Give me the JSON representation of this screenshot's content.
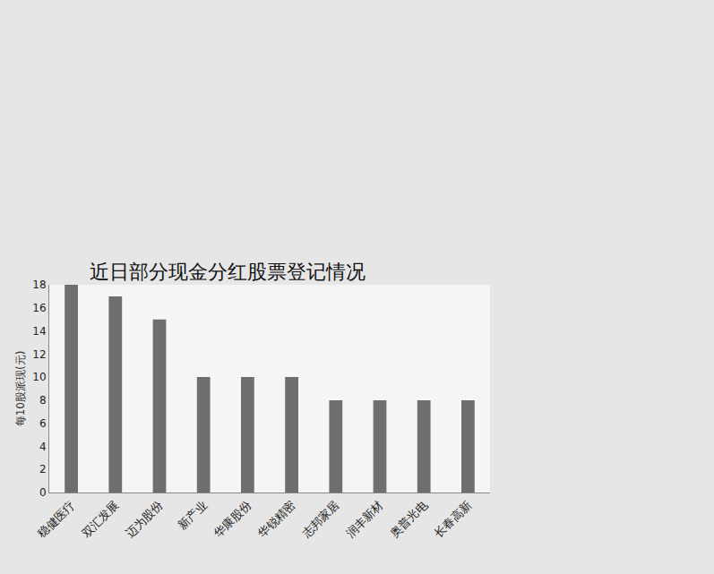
{
  "chart_data": {
    "type": "bar",
    "title": "近日部分现金分红股票登记情况",
    "y_label": "每10股派现(元)",
    "categories": [
      "稳健医疗",
      "双汇发展",
      "迈为股份",
      "新产业",
      "华康股份",
      "华锐精密",
      "志邦家居",
      "润丰新材",
      "奥普光电",
      "长春高新"
    ],
    "values": [
      18,
      17,
      15,
      10,
      10,
      10,
      8,
      8,
      8,
      8
    ],
    "color": "#6e6e6e",
    "ylim": [
      0,
      18
    ],
    "yticks": [
      0,
      2,
      4,
      6,
      8,
      10,
      12,
      14,
      16,
      18
    ],
    "grid": false
  }
}
